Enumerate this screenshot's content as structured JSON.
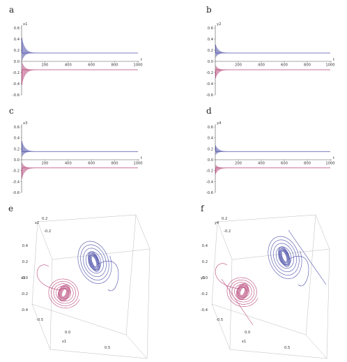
{
  "panels_2d": [
    {
      "label": "a",
      "ylabel": "x1",
      "xlabel": "t",
      "ratio": 1.0
    },
    {
      "label": "b",
      "ylabel": "y2",
      "xlabel": "t",
      "ratio": 0.72
    },
    {
      "label": "c",
      "ylabel": "x3",
      "xlabel": "t",
      "ratio": 0.82
    },
    {
      "label": "d",
      "ylabel": "y4",
      "xlabel": "t",
      "ratio": 0.62
    }
  ],
  "panels_3d": [
    {
      "label": "e",
      "xlabel": "x1",
      "ylabel": "x2",
      "zlabel": "x3"
    },
    {
      "label": "f",
      "xlabel": "x1",
      "ylabel": "y4",
      "zlabel": "y3"
    }
  ],
  "colors": {
    "upper": "#4b4fa8",
    "lower": "#b8487a",
    "axis": "#555555",
    "box": "#bbbbbb"
  },
  "chart_data": [
    {
      "type": "line",
      "panel": "a",
      "x_ticks": [
        200,
        400,
        600,
        800,
        1000
      ],
      "y_ticks": [
        0.6,
        0.4,
        0.2,
        0.0,
        -0.2,
        -0.4,
        -0.6
      ],
      "xlim": [
        0,
        1000
      ],
      "ylim": [
        -0.6,
        0.6
      ],
      "series": [
        {
          "values": {
            "start": 0.42,
            "final": 0.15
          }
        },
        {
          "values": {
            "start": -0.42,
            "final": -0.15
          }
        }
      ]
    },
    {
      "type": "line",
      "panel": "b",
      "x_ticks": [
        200,
        400,
        600,
        800,
        1000
      ],
      "y_ticks": [
        0.6,
        0.4,
        0.2,
        0.0,
        -0.2,
        -0.4,
        -0.6
      ],
      "xlim": [
        0,
        1000
      ],
      "ylim": [
        -0.6,
        0.6
      ],
      "series": [
        {
          "values": {
            "start": 0.3,
            "final": 0.15
          }
        },
        {
          "values": {
            "start": -0.3,
            "final": -0.15
          }
        }
      ]
    },
    {
      "type": "line",
      "panel": "c",
      "x_ticks": [
        200,
        400,
        600,
        800,
        1000
      ],
      "y_ticks": [
        0.6,
        0.4,
        0.2,
        0.0,
        -0.2,
        -0.4,
        -0.6
      ],
      "xlim": [
        0,
        1000
      ],
      "ylim": [
        -0.6,
        0.6
      ],
      "series": [
        {
          "values": {
            "start": 0.34,
            "final": 0.15
          }
        },
        {
          "values": {
            "start": -0.34,
            "final": -0.15
          }
        }
      ]
    },
    {
      "type": "line",
      "panel": "d",
      "x_ticks": [
        200,
        400,
        600,
        800,
        1000
      ],
      "y_ticks": [
        0.6,
        0.4,
        0.2,
        0.0,
        -0.2,
        -0.4,
        -0.6
      ],
      "xlim": [
        0,
        1000
      ],
      "ylim": [
        -0.6,
        0.6
      ],
      "series": [
        {
          "values": {
            "start": 0.26,
            "final": 0.15
          }
        },
        {
          "values": {
            "start": -0.26,
            "final": -0.15
          }
        }
      ]
    },
    {
      "type": "scatter",
      "panel": "e",
      "x_ticks": [
        "-0.5",
        "0.0",
        "0.5"
      ],
      "y_ticks": [
        "-0.2",
        "0.2"
      ],
      "z_ticks": [
        "0.4",
        "0.2",
        "0.0",
        "-0.2",
        "-0.4"
      ]
    },
    {
      "type": "scatter",
      "panel": "f",
      "x_ticks": [
        "-0.5",
        "0.0",
        "0.5"
      ],
      "y_ticks": [
        "-0.2",
        "0.2"
      ],
      "z_ticks": [
        "0.4",
        "0.2",
        "0.0",
        "-0.2",
        "-0.4"
      ]
    }
  ]
}
